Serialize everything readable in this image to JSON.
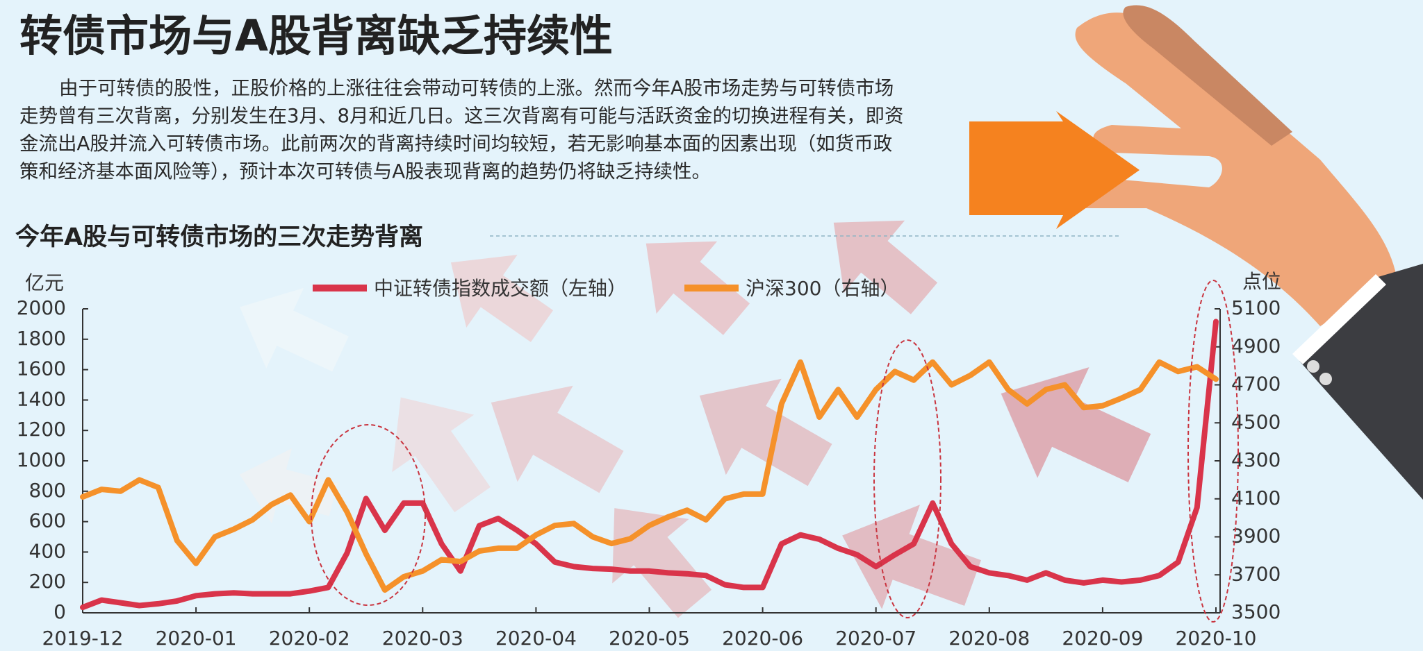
{
  "header": {
    "title": "转债市场与A股背离缺乏持续性",
    "paragraph": [
      "由于可转债的股性，正股价格的上涨往往会带动可转债的上涨。然而今年A股市场走势与可转债市场",
      "走势曾有三次背离，分别发生在3月、8月和近几日。这三次背离有可能与活跃资金的切换进程有关，即资",
      "金流出A股并流入可转债市场。此前两次的背离持续时间均较短，若无影响基本面的因素出现（如货币政",
      "策和经济基本面风险等），预计本次可转债与A股表现背离的趋势仍将缺乏持续性。"
    ]
  },
  "chart_data": {
    "type": "line",
    "title": "今年A股与可转债市场的三次走势背离",
    "y_label": "亿元",
    "y2_label": "点位",
    "categories": [
      "2019-12",
      null,
      null,
      null,
      null,
      null,
      "2020-01",
      null,
      null,
      null,
      null,
      null,
      "2020-02",
      null,
      null,
      null,
      null,
      null,
      "2020-03",
      null,
      null,
      null,
      null,
      null,
      "2020-04",
      null,
      null,
      null,
      null,
      null,
      "2020-05",
      null,
      null,
      null,
      null,
      null,
      "2020-06",
      null,
      null,
      null,
      null,
      null,
      "2020-07",
      null,
      null,
      null,
      null,
      null,
      "2020-08",
      null,
      null,
      null,
      null,
      null,
      "2020-09",
      null,
      null,
      null,
      null,
      null,
      "2020-10"
    ],
    "series": [
      {
        "name": "中证转债指数成交额（左轴）",
        "color": "#d9344a",
        "values": [
          36,
          84,
          66,
          48,
          60,
          78,
          113,
          125,
          131,
          125,
          125,
          125,
          143,
          167,
          394,
          752,
          543,
          722,
          722,
          454,
          275,
          573,
          621,
          543,
          454,
          334,
          304,
          292,
          287,
          275,
          275,
          263,
          257,
          245,
          185,
          167,
          167,
          454,
          513,
          484,
          424,
          382,
          304,
          382,
          454,
          722,
          454,
          304,
          263,
          245,
          215,
          263,
          215,
          197,
          215,
          203,
          215,
          245,
          334,
          693,
          1916
        ]
      },
      {
        "name": "沪深300（右轴）",
        "color": "#f5912a",
        "axis": "y2",
        "values": [
          4110,
          4150,
          4140,
          4200,
          4160,
          3880,
          3760,
          3900,
          3940,
          3990,
          4070,
          4120,
          3980,
          4200,
          4030,
          3810,
          3620,
          3690,
          3720,
          3780,
          3770,
          3825,
          3840,
          3840,
          3910,
          3960,
          3970,
          3900,
          3865,
          3890,
          3960,
          4005,
          4040,
          3990,
          4100,
          4125,
          4125,
          4600,
          4820,
          4530,
          4675,
          4530,
          4675,
          4770,
          4725,
          4820,
          4700,
          4750,
          4820,
          4675,
          4600,
          4675,
          4700,
          4580,
          4590,
          4630,
          4675,
          4820,
          4770,
          4795,
          4730
        ]
      }
    ],
    "ylim": [
      0,
      2000
    ],
    "yticks": [
      0,
      200,
      400,
      600,
      800,
      1000,
      1200,
      1400,
      1600,
      1800,
      2000
    ],
    "y2lim": [
      3500,
      5100
    ],
    "y2ticks": [
      3500,
      3700,
      3900,
      4100,
      4300,
      4500,
      4700,
      4900,
      5100
    ]
  }
}
